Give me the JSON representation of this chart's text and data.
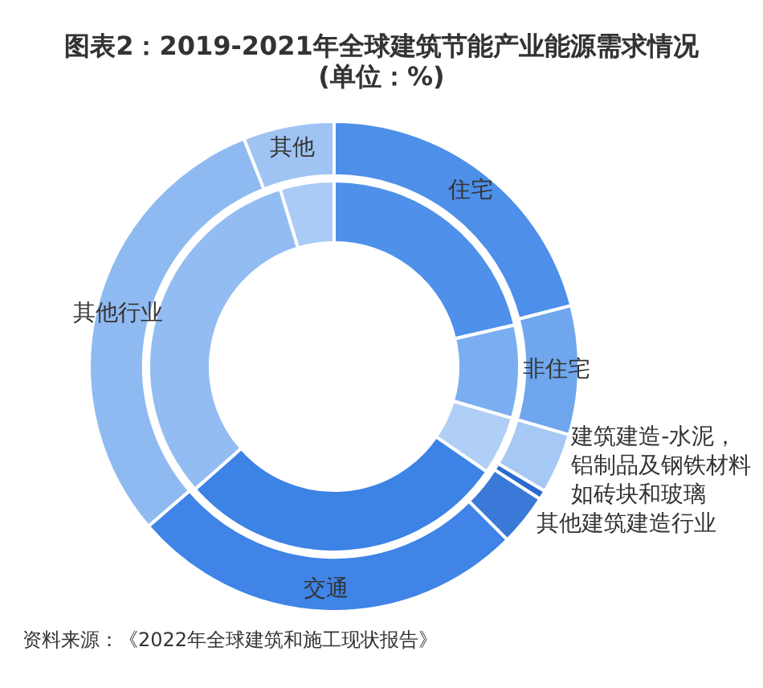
{
  "chart_data": {
    "type": "donut",
    "title": "图表2：2019-2021年全球建筑节能产业能源需求情况(单位：%)",
    "annotations": [
      "资料来源：《2022年全球建筑和施工现状报告》"
    ],
    "categories": [
      "住宅",
      "非住宅",
      "建筑建造-水泥，铝制品及钢铁材料如砖块和玻璃",
      null,
      "其他建筑建造行业",
      "交通",
      "其他行业",
      "其他"
    ],
    "legend": false,
    "series": [
      {
        "values": [
          21,
          8.5,
          4,
          0.6,
          3.4,
          26.2,
          30.3,
          6
        ],
        "colors": [
          "#4d8fe9",
          "#6fa6ee",
          "#a6c8f4",
          "#2a6ad0",
          "#3b79d8",
          "#3f84e6",
          "#8fbaf1",
          "#9fc4f3"
        ]
      },
      {
        "values": [
          21.4,
          8.1,
          5.1,
          0,
          0,
          28.9,
          31.8,
          4.7
        ],
        "colors": [
          "#4f90ea",
          "#7aaef0",
          "#b0cff6",
          "#2a6ad0",
          "#3b79d8",
          "#3d82e5",
          "#93bdf2",
          "#a9cbf5"
        ]
      }
    ]
  }
}
